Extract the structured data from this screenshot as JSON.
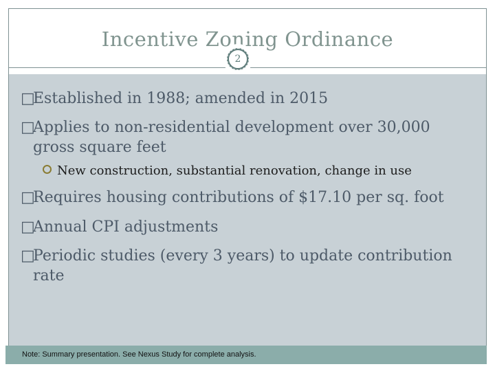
{
  "slide": {
    "title": "Incentive Zoning Ordinance",
    "page_number": "2",
    "bullet_glyph": "□",
    "bullets": [
      {
        "level": 1,
        "text": "Established in 1988; amended in 2015"
      },
      {
        "level": 1,
        "text": "Applies to non-residential development over 30,000 gross square feet"
      },
      {
        "level": 2,
        "text": "New construction, substantial renovation, change in use"
      },
      {
        "level": 1,
        "text": "Requires housing contributions of $17.10 per sq. foot"
      },
      {
        "level": 1,
        "text": "Annual CPI adjustments"
      },
      {
        "level": 1,
        "text": "Periodic studies (every 3 years) to update contribution rate"
      }
    ],
    "footnote": "Note: Summary presentation. See Nexus Study for complete analysis.",
    "colors": {
      "title_text": "#80948f",
      "body_text": "#4d5a68",
      "sub_bullet_text": "#1c1c1c",
      "body_background": "#c8d1d6",
      "footnote_band": "#8badaa",
      "frame_border": "#7e9192",
      "sub_bullet_ring": "#8a7c33",
      "page_circle_ring": "#5f7d7b"
    }
  }
}
